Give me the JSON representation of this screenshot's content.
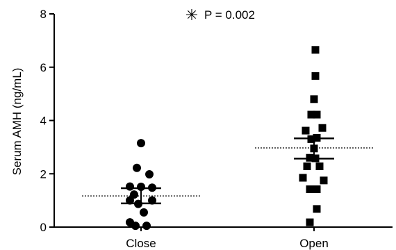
{
  "chart_data": {
    "type": "scatter",
    "annotation": {
      "symbol": "✳",
      "text": "P = 0.002"
    },
    "ylabel": "Serum AMH (ng/mL)",
    "ylim": [
      0,
      8
    ],
    "yticks": [
      "0",
      "2",
      "4",
      "6",
      "8"
    ],
    "categories": [
      "Close",
      "Open"
    ],
    "series": [
      {
        "name": "Close",
        "marker": "circle",
        "mean": 1.17,
        "sem_upper": 1.46,
        "sem_lower": 0.89,
        "points": [
          {
            "v": 3.15,
            "j": 0
          },
          {
            "v": 2.22,
            "j": -0.6
          },
          {
            "v": 1.98,
            "j": 1.2
          },
          {
            "v": 1.52,
            "j": -1.6
          },
          {
            "v": 1.51,
            "j": 0
          },
          {
            "v": 1.48,
            "j": 1.6
          },
          {
            "v": 1.22,
            "j": -1
          },
          {
            "v": 1.0,
            "j": -1.6
          },
          {
            "v": 1.0,
            "j": 1.6
          },
          {
            "v": 0.87,
            "j": -0.4
          },
          {
            "v": 0.55,
            "j": 0.4
          },
          {
            "v": 0.18,
            "j": -1.6
          },
          {
            "v": 0.05,
            "j": -0.8
          },
          {
            "v": 0.05,
            "j": 0.8
          }
        ]
      },
      {
        "name": "Open",
        "marker": "square",
        "mean": 2.97,
        "sem_upper": 3.33,
        "sem_lower": 2.57,
        "points": [
          {
            "v": 6.65,
            "j": 0.2
          },
          {
            "v": 5.67,
            "j": 0.2
          },
          {
            "v": 4.8,
            "j": 0
          },
          {
            "v": 4.22,
            "j": -0.4
          },
          {
            "v": 4.22,
            "j": 0.4
          },
          {
            "v": 3.72,
            "j": 1.2
          },
          {
            "v": 3.62,
            "j": -1.2
          },
          {
            "v": 3.35,
            "j": 0.4
          },
          {
            "v": 3.3,
            "j": -0.4
          },
          {
            "v": 2.95,
            "j": 0
          },
          {
            "v": 2.6,
            "j": -0.6
          },
          {
            "v": 2.58,
            "j": 0.2
          },
          {
            "v": 2.28,
            "j": -1
          },
          {
            "v": 2.28,
            "j": 0.8
          },
          {
            "v": 1.85,
            "j": -1.6
          },
          {
            "v": 1.75,
            "j": 1.4
          },
          {
            "v": 1.42,
            "j": -0.6
          },
          {
            "v": 1.42,
            "j": 0.4
          },
          {
            "v": 0.68,
            "j": 0.4
          },
          {
            "v": 0.18,
            "j": -0.6
          }
        ]
      }
    ]
  }
}
